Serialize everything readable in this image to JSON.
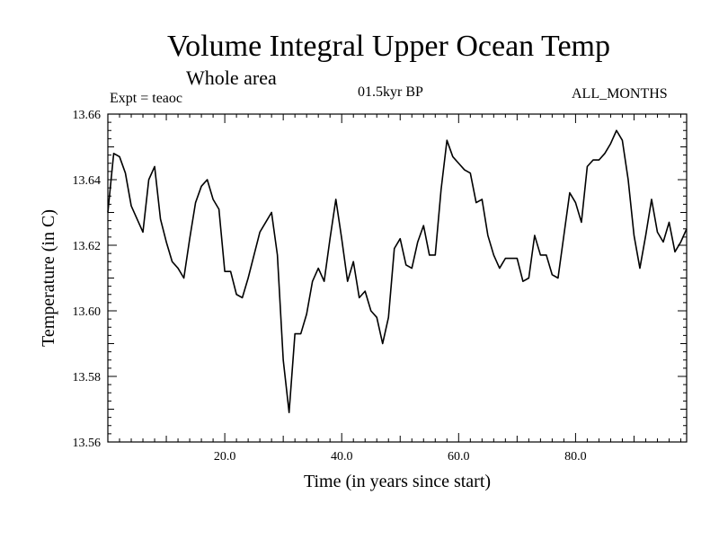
{
  "chart_data": {
    "type": "line",
    "title": "Volume Integral Upper Ocean Temp",
    "subtitle": "Whole area",
    "header_left": "Expt = teaoc",
    "header_center": "01.5kyr BP",
    "header_right": "ALL_MONTHS",
    "xlabel": "Time (in years since start)",
    "ylabel": "Temperature (in C)",
    "xlim": [
      0,
      99
    ],
    "ylim": [
      13.56,
      13.66
    ],
    "xticks": [
      20,
      40,
      60,
      80
    ],
    "xtick_labels": [
      "20.0",
      "40.0",
      "60.0",
      "80.0"
    ],
    "yticks": [
      13.56,
      13.58,
      13.6,
      13.62,
      13.64,
      13.66
    ],
    "ytick_labels": [
      "13.56",
      "13.58",
      "13.60",
      "13.62",
      "13.64",
      "13.66"
    ],
    "series": [
      {
        "name": "Temperature",
        "color": "#000000",
        "x": [
          0,
          1,
          2,
          3,
          4,
          5,
          6,
          7,
          8,
          9,
          10,
          11,
          12,
          13,
          14,
          15,
          16,
          17,
          18,
          19,
          20,
          21,
          22,
          23,
          24,
          25,
          26,
          27,
          28,
          29,
          30,
          31,
          32,
          33,
          34,
          35,
          36,
          37,
          38,
          39,
          40,
          41,
          42,
          43,
          44,
          45,
          46,
          47,
          48,
          49,
          50,
          51,
          52,
          53,
          54,
          55,
          56,
          57,
          58,
          59,
          60,
          61,
          62,
          63,
          64,
          65,
          66,
          67,
          68,
          69,
          70,
          71,
          72,
          73,
          74,
          75,
          76,
          77,
          78,
          79,
          80,
          81,
          82,
          83,
          84,
          85,
          86,
          87,
          88,
          89,
          90,
          91,
          92,
          93,
          94,
          95,
          96,
          97,
          98,
          99
        ],
        "values": [
          13.63,
          13.648,
          13.647,
          13.642,
          13.632,
          13.628,
          13.624,
          13.64,
          13.644,
          13.628,
          13.621,
          13.615,
          13.613,
          13.61,
          13.622,
          13.633,
          13.638,
          13.64,
          13.634,
          13.631,
          13.612,
          13.612,
          13.605,
          13.604,
          13.61,
          13.617,
          13.624,
          13.627,
          13.63,
          13.617,
          13.585,
          13.569,
          13.593,
          13.593,
          13.599,
          13.609,
          13.613,
          13.609,
          13.622,
          13.634,
          13.622,
          13.609,
          13.615,
          13.604,
          13.606,
          13.6,
          13.598,
          13.59,
          13.598,
          13.619,
          13.622,
          13.614,
          13.613,
          13.621,
          13.626,
          13.617,
          13.617,
          13.637,
          13.652,
          13.647,
          13.645,
          13.643,
          13.642,
          13.633,
          13.634,
          13.623,
          13.617,
          13.613,
          13.616,
          13.616,
          13.616,
          13.609,
          13.61,
          13.623,
          13.617,
          13.617,
          13.611,
          13.61,
          13.623,
          13.636,
          13.633,
          13.627,
          13.644,
          13.646,
          13.646,
          13.648,
          13.651,
          13.655,
          13.652,
          13.64,
          13.623,
          13.613,
          13.623,
          13.634,
          13.624,
          13.621,
          13.627,
          13.618,
          13.621,
          13.625
        ]
      }
    ]
  }
}
